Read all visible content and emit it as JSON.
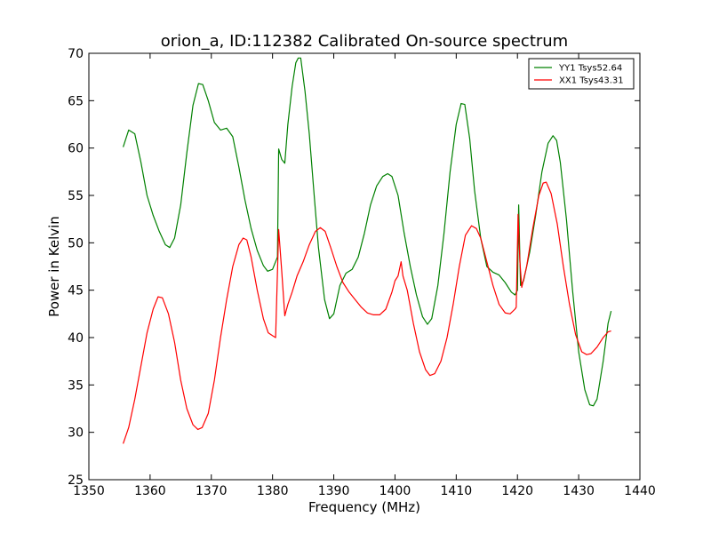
{
  "chart_data": {
    "type": "line",
    "title": "orion_a, ID:112382 Calibrated On-source spectrum",
    "xlabel": "Frequency (MHz)",
    "ylabel": "Power in Kelvin",
    "xlim": [
      1350,
      1440
    ],
    "ylim": [
      25,
      70
    ],
    "xticks": [
      1350,
      1360,
      1370,
      1380,
      1390,
      1400,
      1410,
      1420,
      1430,
      1440
    ],
    "yticks": [
      25,
      30,
      35,
      40,
      45,
      50,
      55,
      60,
      65,
      70
    ],
    "grid": false,
    "legend_position": "top-right",
    "series": [
      {
        "name": "YY1 Tsys52.64",
        "color": "#008000",
        "points": [
          [
            1355.6,
            60.1
          ],
          [
            1356.5,
            61.9
          ],
          [
            1357.5,
            61.5
          ],
          [
            1358.5,
            58.5
          ],
          [
            1359.5,
            55.0
          ],
          [
            1360.5,
            52.9
          ],
          [
            1361.5,
            51.2
          ],
          [
            1362.5,
            49.8
          ],
          [
            1363.2,
            49.5
          ],
          [
            1364.0,
            50.5
          ],
          [
            1365.0,
            54.0
          ],
          [
            1366.0,
            59.5
          ],
          [
            1367.0,
            64.5
          ],
          [
            1367.9,
            66.8
          ],
          [
            1368.6,
            66.7
          ],
          [
            1369.5,
            65.0
          ],
          [
            1370.5,
            62.7
          ],
          [
            1371.5,
            61.9
          ],
          [
            1372.5,
            62.1
          ],
          [
            1373.5,
            61.2
          ],
          [
            1374.5,
            58.0
          ],
          [
            1375.5,
            54.5
          ],
          [
            1376.5,
            51.5
          ],
          [
            1377.5,
            49.2
          ],
          [
            1378.5,
            47.6
          ],
          [
            1379.2,
            47.0
          ],
          [
            1380.0,
            47.2
          ],
          [
            1380.8,
            48.5
          ],
          [
            1381.0,
            59.9
          ],
          [
            1381.5,
            58.8
          ],
          [
            1382.0,
            58.4
          ],
          [
            1382.5,
            62.5
          ],
          [
            1383.2,
            66.5
          ],
          [
            1383.8,
            69.0
          ],
          [
            1384.2,
            69.5
          ],
          [
            1384.6,
            69.5
          ],
          [
            1385.3,
            66.0
          ],
          [
            1386.0,
            61.5
          ],
          [
            1386.8,
            55.0
          ],
          [
            1387.5,
            49.5
          ],
          [
            1388.5,
            44.0
          ],
          [
            1389.3,
            42.0
          ],
          [
            1390.0,
            42.5
          ],
          [
            1391.0,
            45.5
          ],
          [
            1392.0,
            46.8
          ],
          [
            1393.0,
            47.2
          ],
          [
            1394.0,
            48.5
          ],
          [
            1395.0,
            51.0
          ],
          [
            1396.0,
            54.0
          ],
          [
            1397.0,
            56.0
          ],
          [
            1398.0,
            57.0
          ],
          [
            1398.8,
            57.3
          ],
          [
            1399.5,
            57.0
          ],
          [
            1400.5,
            55.0
          ],
          [
            1401.5,
            51.0
          ],
          [
            1402.5,
            47.5
          ],
          [
            1403.5,
            44.5
          ],
          [
            1404.5,
            42.2
          ],
          [
            1405.3,
            41.4
          ],
          [
            1406.0,
            42.0
          ],
          [
            1407.0,
            45.5
          ],
          [
            1408.0,
            51.0
          ],
          [
            1409.0,
            57.5
          ],
          [
            1410.0,
            62.5
          ],
          [
            1410.8,
            64.7
          ],
          [
            1411.4,
            64.6
          ],
          [
            1412.2,
            61.0
          ],
          [
            1413.0,
            55.5
          ],
          [
            1414.0,
            50.5
          ],
          [
            1415.0,
            47.5
          ],
          [
            1416.0,
            46.9
          ],
          [
            1417.0,
            46.6
          ],
          [
            1418.0,
            45.8
          ],
          [
            1419.0,
            44.8
          ],
          [
            1419.6,
            44.5
          ],
          [
            1420.0,
            45.0
          ],
          [
            1420.2,
            54.0
          ],
          [
            1420.5,
            45.5
          ],
          [
            1421.0,
            46.0
          ],
          [
            1422.0,
            49.0
          ],
          [
            1423.0,
            53.0
          ],
          [
            1424.0,
            57.5
          ],
          [
            1425.0,
            60.5
          ],
          [
            1425.8,
            61.3
          ],
          [
            1426.4,
            60.8
          ],
          [
            1427.0,
            58.5
          ],
          [
            1428.0,
            52.5
          ],
          [
            1429.0,
            45.0
          ],
          [
            1430.0,
            38.5
          ],
          [
            1431.0,
            34.5
          ],
          [
            1431.8,
            32.9
          ],
          [
            1432.4,
            32.8
          ],
          [
            1433.0,
            33.5
          ],
          [
            1434.0,
            37.5
          ],
          [
            1434.8,
            41.5
          ],
          [
            1435.3,
            42.8
          ]
        ]
      },
      {
        "name": "XX1 Tsys43.31",
        "color": "#ff0000",
        "points": [
          [
            1355.6,
            28.8
          ],
          [
            1356.5,
            30.5
          ],
          [
            1357.5,
            33.5
          ],
          [
            1358.5,
            37.0
          ],
          [
            1359.5,
            40.5
          ],
          [
            1360.5,
            43.0
          ],
          [
            1361.3,
            44.3
          ],
          [
            1362.0,
            44.2
          ],
          [
            1363.0,
            42.5
          ],
          [
            1364.0,
            39.5
          ],
          [
            1365.0,
            35.5
          ],
          [
            1366.0,
            32.5
          ],
          [
            1367.0,
            30.8
          ],
          [
            1367.8,
            30.3
          ],
          [
            1368.5,
            30.5
          ],
          [
            1369.5,
            32.0
          ],
          [
            1370.5,
            35.5
          ],
          [
            1371.5,
            40.0
          ],
          [
            1372.5,
            44.0
          ],
          [
            1373.5,
            47.5
          ],
          [
            1374.5,
            49.8
          ],
          [
            1375.2,
            50.5
          ],
          [
            1375.8,
            50.3
          ],
          [
            1376.5,
            48.5
          ],
          [
            1377.5,
            45.0
          ],
          [
            1378.5,
            42.0
          ],
          [
            1379.3,
            40.5
          ],
          [
            1380.0,
            40.2
          ],
          [
            1380.5,
            40.0
          ],
          [
            1381.0,
            51.4
          ],
          [
            1381.5,
            47.0
          ],
          [
            1382.0,
            42.3
          ],
          [
            1382.5,
            43.5
          ],
          [
            1383.2,
            44.8
          ],
          [
            1384.0,
            46.5
          ],
          [
            1385.0,
            48.0
          ],
          [
            1386.0,
            49.8
          ],
          [
            1387.0,
            51.2
          ],
          [
            1387.8,
            51.6
          ],
          [
            1388.6,
            51.2
          ],
          [
            1389.5,
            49.5
          ],
          [
            1390.5,
            47.5
          ],
          [
            1391.5,
            45.8
          ],
          [
            1392.5,
            44.8
          ],
          [
            1393.5,
            44.0
          ],
          [
            1394.5,
            43.2
          ],
          [
            1395.5,
            42.6
          ],
          [
            1396.5,
            42.4
          ],
          [
            1397.5,
            42.4
          ],
          [
            1398.5,
            43.0
          ],
          [
            1399.5,
            44.8
          ],
          [
            1400.0,
            46.0
          ],
          [
            1400.5,
            46.5
          ],
          [
            1401.0,
            48.0
          ],
          [
            1401.3,
            46.5
          ],
          [
            1402.0,
            45.0
          ],
          [
            1403.0,
            41.5
          ],
          [
            1404.0,
            38.5
          ],
          [
            1405.0,
            36.6
          ],
          [
            1405.7,
            36.0
          ],
          [
            1406.5,
            36.2
          ],
          [
            1407.5,
            37.5
          ],
          [
            1408.5,
            40.0
          ],
          [
            1409.5,
            43.5
          ],
          [
            1410.5,
            47.5
          ],
          [
            1411.5,
            50.8
          ],
          [
            1412.5,
            51.8
          ],
          [
            1413.3,
            51.5
          ],
          [
            1414.0,
            50.5
          ],
          [
            1415.0,
            48.0
          ],
          [
            1416.0,
            45.5
          ],
          [
            1417.0,
            43.5
          ],
          [
            1418.0,
            42.6
          ],
          [
            1418.8,
            42.5
          ],
          [
            1419.6,
            43.0
          ],
          [
            1419.8,
            43.2
          ],
          [
            1420.1,
            53.0
          ],
          [
            1420.4,
            48.0
          ],
          [
            1420.7,
            45.3
          ],
          [
            1421.5,
            47.5
          ],
          [
            1422.5,
            51.5
          ],
          [
            1423.5,
            55.0
          ],
          [
            1424.2,
            56.3
          ],
          [
            1424.7,
            56.4
          ],
          [
            1425.5,
            55.2
          ],
          [
            1426.5,
            52.0
          ],
          [
            1427.5,
            47.5
          ],
          [
            1428.5,
            43.5
          ],
          [
            1429.5,
            40.3
          ],
          [
            1430.5,
            38.5
          ],
          [
            1431.3,
            38.2
          ],
          [
            1432.0,
            38.3
          ],
          [
            1433.0,
            39.0
          ],
          [
            1434.0,
            40.0
          ],
          [
            1434.8,
            40.6
          ],
          [
            1435.3,
            40.7
          ]
        ]
      }
    ]
  }
}
